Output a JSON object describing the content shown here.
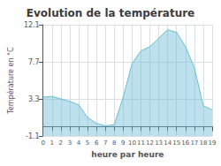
{
  "chart_data": {
    "type": "area",
    "title": "Evolution de la température",
    "xlabel": "heure par heure",
    "ylabel": "Température en °C",
    "x": [
      0,
      1,
      2,
      3,
      4,
      5,
      6,
      7,
      8,
      9,
      10,
      11,
      12,
      13,
      14,
      15,
      16,
      17,
      18,
      19
    ],
    "values": [
      3.5,
      3.6,
      3.3,
      3.0,
      2.6,
      1.1,
      0.4,
      0.1,
      0.25,
      3.5,
      7.5,
      9.0,
      9.5,
      10.5,
      11.5,
      11.2,
      9.5,
      7.0,
      2.5,
      2.0
    ],
    "color": "#6bbdd4",
    "xlim": [
      0,
      19
    ],
    "xticks": [
      0,
      1,
      2,
      3,
      4,
      5,
      6,
      7,
      8,
      9,
      10,
      11,
      12,
      13,
      14,
      15,
      16,
      17,
      18,
      19
    ],
    "ylim": [
      -1.1,
      12.1
    ],
    "yticks": [
      -1.1,
      3.3,
      7.7,
      12.1
    ],
    "grid": true
  }
}
